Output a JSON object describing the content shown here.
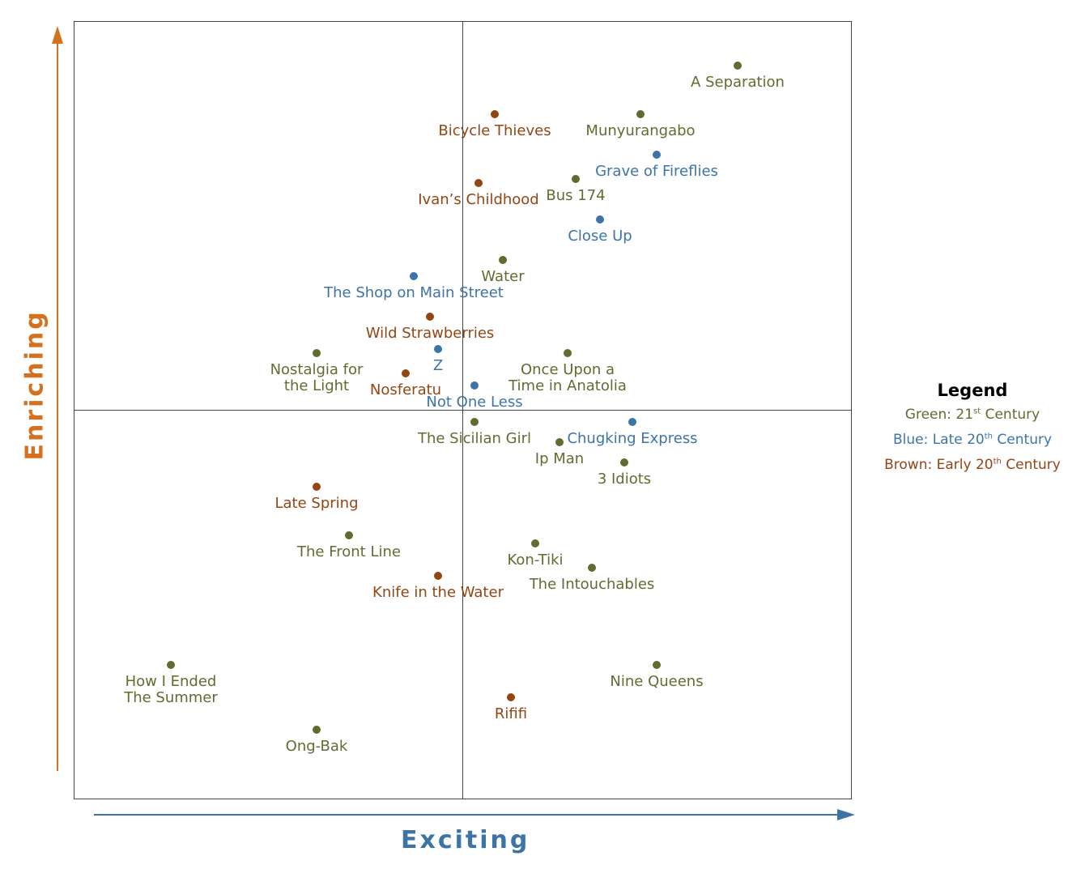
{
  "chart_data": {
    "type": "scatter",
    "xlabel": "Exciting",
    "ylabel": "Enriching",
    "xlim": [
      -48,
      48
    ],
    "ylim": [
      -48,
      48
    ],
    "grid": false,
    "quadrant_lines": true,
    "legend_position": "right",
    "colors": {
      "green": "#5f6d30",
      "blue": "#3d74a8",
      "brown": "#954513",
      "x_arrow": "#3d74a8",
      "y_arrow": "#d4701e"
    },
    "legend": {
      "title": "Legend",
      "entries": [
        {
          "color": "green",
          "prefix": "Green: 21",
          "sup": "st",
          "suffix": " Century"
        },
        {
          "color": "blue",
          "prefix": "Blue: Late 20",
          "sup": "th",
          "suffix": " Century"
        },
        {
          "color": "brown",
          "prefix": "Brown: Early 20",
          "sup": "th",
          "suffix": " Century"
        }
      ]
    },
    "points": [
      {
        "label": [
          "A Separation"
        ],
        "x": 34,
        "y": 42.5,
        "group": "green"
      },
      {
        "label": [
          "Munyurangabo"
        ],
        "x": 22,
        "y": 36.5,
        "group": "green"
      },
      {
        "label": [
          "Bicycle Thieves"
        ],
        "x": 4,
        "y": 36.5,
        "group": "brown"
      },
      {
        "label": [
          "Grave of Fireflies"
        ],
        "x": 24,
        "y": 31.5,
        "group": "blue"
      },
      {
        "label": [
          "Bus 174"
        ],
        "x": 14,
        "y": 28.5,
        "group": "green"
      },
      {
        "label": [
          "Ivan’s Childhood"
        ],
        "x": 2,
        "y": 28,
        "group": "brown"
      },
      {
        "label": [
          "Close Up"
        ],
        "x": 17,
        "y": 23.5,
        "group": "blue"
      },
      {
        "label": [
          "Water"
        ],
        "x": 5,
        "y": 18.5,
        "group": "green"
      },
      {
        "label": [
          "The Shop on Main Street"
        ],
        "x": -6,
        "y": 16.5,
        "group": "blue"
      },
      {
        "label": [
          "Wild Strawberries"
        ],
        "x": -4,
        "y": 11.5,
        "group": "brown"
      },
      {
        "label": [
          "Nostalgia for",
          "the Light"
        ],
        "x": -18,
        "y": 7,
        "group": "green"
      },
      {
        "label": [
          "Z"
        ],
        "x": -3,
        "y": 7.5,
        "group": "blue"
      },
      {
        "label": [
          "Once Upon a",
          "Time in Anatolia"
        ],
        "x": 13,
        "y": 7,
        "group": "green"
      },
      {
        "label": [
          "Nosferatu"
        ],
        "x": -7,
        "y": 4.5,
        "group": "brown"
      },
      {
        "label": [
          "Not One Less"
        ],
        "x": 1.5,
        "y": 3,
        "group": "blue"
      },
      {
        "label": [
          "The Sicilian Girl"
        ],
        "x": 1.5,
        "y": -1.5,
        "group": "green"
      },
      {
        "label": [
          "Chugking Express"
        ],
        "x": 21,
        "y": -1.5,
        "group": "blue"
      },
      {
        "label": [
          "Ip Man"
        ],
        "x": 12,
        "y": -4,
        "group": "green"
      },
      {
        "label": [
          "3 Idiots"
        ],
        "x": 20,
        "y": -6.5,
        "group": "green"
      },
      {
        "label": [
          "Late Spring"
        ],
        "x": -18,
        "y": -9.5,
        "group": "brown"
      },
      {
        "label": [
          "The Front Line"
        ],
        "x": -14,
        "y": -15.5,
        "group": "green"
      },
      {
        "label": [
          "Kon-Tiki"
        ],
        "x": 9,
        "y": -16.5,
        "group": "green"
      },
      {
        "label": [
          "The Intouchables"
        ],
        "x": 16,
        "y": -19.5,
        "group": "green"
      },
      {
        "label": [
          "Knife in the Water"
        ],
        "x": -3,
        "y": -20.5,
        "group": "brown"
      },
      {
        "label": [
          "How I Ended",
          "The Summer"
        ],
        "x": -36,
        "y": -31.5,
        "group": "green"
      },
      {
        "label": [
          "Nine Queens"
        ],
        "x": 24,
        "y": -31.5,
        "group": "green"
      },
      {
        "label": [
          "Rififi"
        ],
        "x": 6,
        "y": -35.5,
        "group": "brown"
      },
      {
        "label": [
          "Ong-Bak"
        ],
        "x": -18,
        "y": -39.5,
        "group": "green"
      }
    ]
  }
}
